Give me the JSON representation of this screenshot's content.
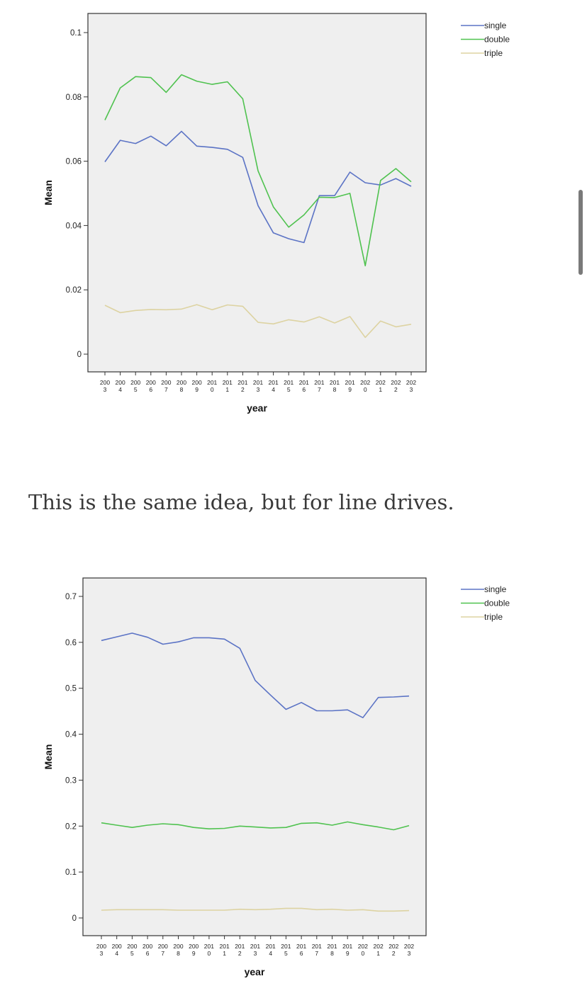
{
  "caption": "This is the same idea, but for line drives.",
  "colors": {
    "single": "#5b73c5",
    "double": "#4fc24f",
    "triple": "#ddd3a2",
    "plot_bg": "#efefef"
  },
  "chart_data": [
    {
      "type": "line",
      "xlabel": "year",
      "ylabel": "Mean",
      "ylim": [
        0,
        0.1
      ],
      "yticks": [
        0,
        0.02,
        0.04,
        0.06,
        0.08,
        0.1
      ],
      "ytick_labels": [
        "0",
        "0.02",
        "0.04",
        "0.06",
        "0.08",
        "0.1"
      ],
      "x": [
        2003,
        2004,
        2005,
        2006,
        2007,
        2008,
        2009,
        2010,
        2011,
        2012,
        2013,
        2014,
        2015,
        2016,
        2017,
        2018,
        2019,
        2020,
        2021,
        2022,
        2023
      ],
      "legend_position": "top-right",
      "grid": false,
      "series": [
        {
          "name": "single",
          "values": [
            0.0598,
            0.0665,
            0.0655,
            0.0678,
            0.0648,
            0.0693,
            0.0647,
            0.0643,
            0.0637,
            0.0612,
            0.0462,
            0.0377,
            0.0359,
            0.0347,
            0.0493,
            0.0493,
            0.0566,
            0.0533,
            0.0526,
            0.0546,
            0.0522
          ]
        },
        {
          "name": "double",
          "values": [
            0.0728,
            0.0828,
            0.0863,
            0.086,
            0.0814,
            0.0869,
            0.0849,
            0.0839,
            0.0847,
            0.0794,
            0.057,
            0.0458,
            0.0395,
            0.0433,
            0.0488,
            0.0487,
            0.05,
            0.0275,
            0.054,
            0.0577,
            0.0536
          ]
        },
        {
          "name": "triple",
          "values": [
            0.0152,
            0.0129,
            0.0136,
            0.0139,
            0.0138,
            0.014,
            0.0154,
            0.0138,
            0.0153,
            0.0149,
            0.0099,
            0.0094,
            0.0107,
            0.01,
            0.0116,
            0.0097,
            0.0117,
            0.0052,
            0.0103,
            0.0085,
            0.0093
          ]
        }
      ]
    },
    {
      "type": "line",
      "xlabel": "year",
      "ylabel": "Mean",
      "ylim": [
        0,
        0.7
      ],
      "yticks": [
        0,
        0.1,
        0.2,
        0.3,
        0.4,
        0.5,
        0.6,
        0.7
      ],
      "ytick_labels": [
        "0",
        "0.1",
        "0.2",
        "0.3",
        "0.4",
        "0.5",
        "0.6",
        "0.7"
      ],
      "x": [
        2003,
        2004,
        2005,
        2006,
        2007,
        2008,
        2009,
        2010,
        2011,
        2012,
        2013,
        2014,
        2015,
        2016,
        2017,
        2018,
        2019,
        2020,
        2021,
        2022,
        2023
      ],
      "legend_position": "top-right",
      "grid": false,
      "series": [
        {
          "name": "single",
          "values": [
            0.604,
            0.612,
            0.62,
            0.611,
            0.596,
            0.601,
            0.61,
            0.61,
            0.607,
            0.587,
            0.517,
            0.485,
            0.454,
            0.469,
            0.451,
            0.451,
            0.453,
            0.436,
            0.48,
            0.481,
            0.483
          ]
        },
        {
          "name": "double",
          "values": [
            0.207,
            0.202,
            0.197,
            0.202,
            0.205,
            0.203,
            0.197,
            0.194,
            0.195,
            0.2,
            0.198,
            0.196,
            0.197,
            0.206,
            0.207,
            0.202,
            0.209,
            0.203,
            0.198,
            0.192,
            0.201
          ]
        },
        {
          "name": "triple",
          "values": [
            0.017,
            0.018,
            0.018,
            0.018,
            0.018,
            0.017,
            0.017,
            0.017,
            0.017,
            0.019,
            0.018,
            0.019,
            0.021,
            0.021,
            0.018,
            0.019,
            0.017,
            0.018,
            0.015,
            0.015,
            0.016
          ]
        }
      ]
    }
  ]
}
